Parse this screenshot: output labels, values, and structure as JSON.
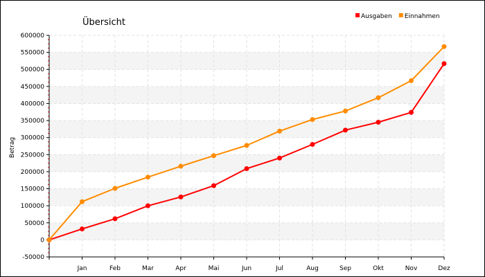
{
  "chart_data": {
    "type": "line",
    "title": "Übersicht",
    "ylabel": "Betrag",
    "xlabel": "",
    "categories": [
      "",
      "Jan",
      "Feb",
      "Mar",
      "Apr",
      "Mai",
      "Jun",
      "Jul",
      "Aug",
      "Sep",
      "Okt",
      "Nov",
      "Dez"
    ],
    "ylim": [
      -50000,
      600000
    ],
    "yticks": [
      -50000,
      0,
      50000,
      100000,
      150000,
      200000,
      250000,
      300000,
      350000,
      400000,
      450000,
      500000,
      550000,
      600000
    ],
    "grid": true,
    "legend": "top-right",
    "series": [
      {
        "name": "Ausgaben",
        "color": "#ff0000",
        "values": [
          0,
          32000,
          62000,
          100000,
          126000,
          159000,
          209000,
          240000,
          280000,
          322000,
          345000,
          374000,
          517000
        ]
      },
      {
        "name": "Einnahmen",
        "color": "#ff8c00",
        "values": [
          0,
          112000,
          151000,
          184000,
          216000,
          247000,
          277000,
          319000,
          353000,
          378000,
          417000,
          467000,
          567000
        ]
      }
    ]
  }
}
